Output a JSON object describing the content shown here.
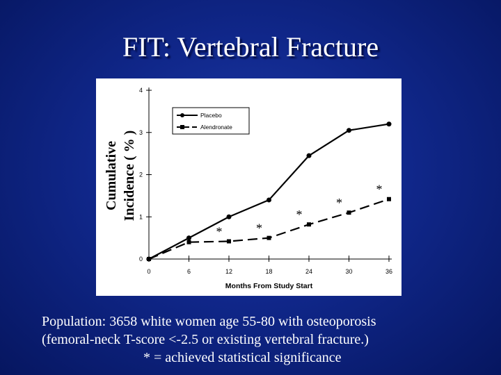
{
  "slide": {
    "title": "FIT:  Vertebral Fracture",
    "caption_line1": "Population:  3658 white women age 55-80 with osteoporosis",
    "caption_line2": "(femoral-neck T-score <-2.5 or existing vertebral fracture.)",
    "caption_line3": "* = achieved statistical significance",
    "colors": {
      "background": "#10278a",
      "text": "#ffffff",
      "chart_ink": "#000000"
    }
  },
  "chart_data": {
    "type": "line",
    "title": "",
    "xlabel": "Months From Study Start",
    "ylabel_line1": "Cumulative",
    "ylabel_line2": "Incidence ( % )",
    "x": [
      0,
      6,
      12,
      18,
      24,
      30,
      36
    ],
    "xlim": [
      0,
      36
    ],
    "ylim": [
      0,
      4
    ],
    "x_ticks": [
      "0",
      "6",
      "12",
      "18",
      "24",
      "30",
      "36"
    ],
    "y_ticks": [
      "0",
      "1",
      "2",
      "3",
      "4"
    ],
    "grid": false,
    "legend_position": "top-left",
    "series": [
      {
        "name": "Placebo",
        "style": "solid",
        "marker": "circle",
        "values": [
          0,
          0.5,
          1.0,
          1.4,
          2.45,
          3.05,
          3.2
        ]
      },
      {
        "name": "Alendronate",
        "style": "dashed",
        "marker": "square",
        "values": [
          0,
          0.4,
          0.42,
          0.5,
          0.82,
          1.1,
          1.42
        ]
      }
    ],
    "significance_marker": "*",
    "significant_x": [
      12,
      18,
      24,
      30,
      36
    ]
  }
}
